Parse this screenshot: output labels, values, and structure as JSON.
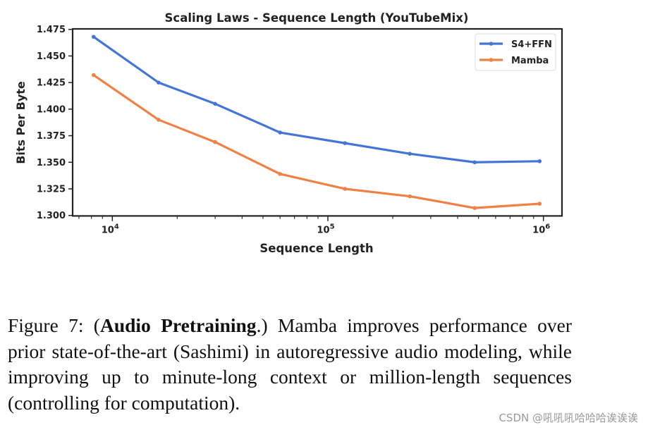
{
  "chart_data": {
    "type": "line",
    "title": "Scaling Laws - Sequence Length (YouTubeMix)",
    "xlabel": "Sequence Length",
    "ylabel": "Bits Per Byte",
    "xscale": "log",
    "xlim": [
      6500,
      1250000
    ],
    "ylim": [
      1.3,
      1.475
    ],
    "x_ticks": [
      {
        "value": 10000,
        "base": "10",
        "exp": "4"
      },
      {
        "value": 100000,
        "base": "10",
        "exp": "5"
      },
      {
        "value": 1000000,
        "base": "10",
        "exp": "6"
      }
    ],
    "y_ticks": [
      "1.300",
      "1.325",
      "1.350",
      "1.375",
      "1.400",
      "1.425",
      "1.450",
      "1.475"
    ],
    "x": [
      8192,
      16384,
      30000,
      60000,
      120000,
      240000,
      480000,
      960000
    ],
    "series": [
      {
        "name": "S4+FFN",
        "color": "#4575d4",
        "values": [
          1.468,
          1.425,
          1.405,
          1.378,
          1.368,
          1.358,
          1.35,
          1.351
        ]
      },
      {
        "name": "Mamba",
        "color": "#ef8145",
        "values": [
          1.432,
          1.39,
          1.369,
          1.339,
          1.325,
          1.318,
          1.307,
          1.311
        ]
      }
    ],
    "grid": false,
    "legend": "top-right"
  },
  "caption": {
    "prefix": "Figure 7: (",
    "bold": "Audio Pretraining",
    "suffix": ".) Mamba improves performance over prior state-of-the-art (Sashimi) in autoregressive audio modeling, while improving up to minute-long context or million-length sequences (controlling for computation)."
  },
  "watermark": "CSDN @吼吼吼哈哈哈诶诶诶"
}
